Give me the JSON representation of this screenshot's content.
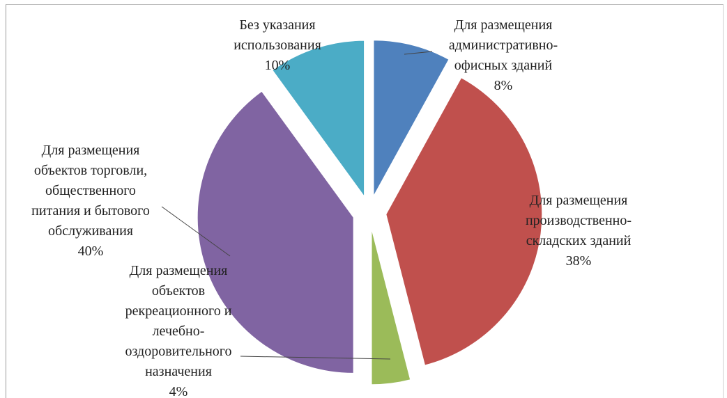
{
  "chart_data": {
    "type": "pie",
    "title": "",
    "legend": "none",
    "slices": [
      {
        "label_lines": [
          "Для размещения",
          "административно-",
          "офисных зданий"
        ],
        "percent_label": "8%",
        "value": 8,
        "color": "#4F81BD"
      },
      {
        "label_lines": [
          "Для размещения",
          "производственно-",
          "складских зданий"
        ],
        "percent_label": "38%",
        "value": 38,
        "color": "#C0504D"
      },
      {
        "label_lines": [
          "Для размещения",
          "объектов",
          "рекреационного и",
          "лечебно-",
          "оздоровительного",
          "назначения"
        ],
        "percent_label": "4%",
        "value": 4,
        "color": "#9BBB59"
      },
      {
        "label_lines": [
          "Для размещения",
          "объектов торговли,",
          "общественного",
          "питания и бытового",
          "обслуживания"
        ],
        "percent_label": "40%",
        "value": 40,
        "color": "#8064A2"
      },
      {
        "label_lines": [
          "Без указания",
          "использования"
        ],
        "percent_label": "10%",
        "value": 10,
        "color": "#4BACC6"
      }
    ]
  }
}
